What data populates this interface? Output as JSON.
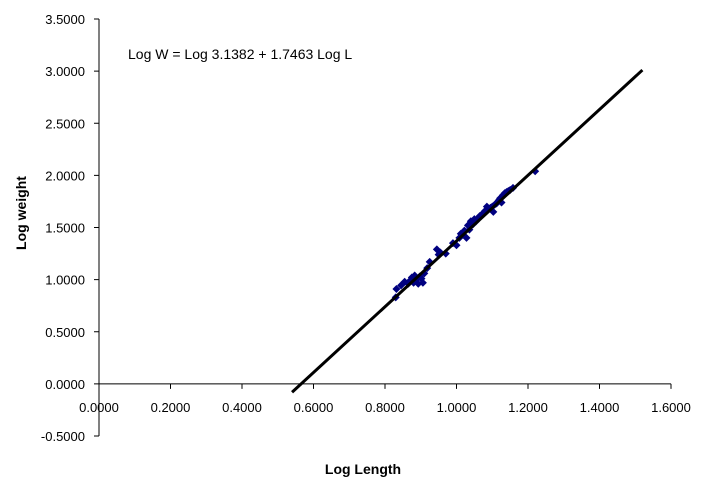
{
  "chart_data": {
    "type": "scatter",
    "title": "",
    "xlabel": "Log Length",
    "ylabel": "Log weight",
    "xlim": [
      0,
      1.6
    ],
    "ylim": [
      -0.5,
      3.5
    ],
    "x_ticks": [
      "0.0000",
      "0.2000",
      "0.4000",
      "0.6000",
      "0.8000",
      "1.0000",
      "1.2000",
      "1.4000",
      "1.6000"
    ],
    "y_ticks": [
      "-0.5000",
      "0.0000",
      "0.5000",
      "1.0000",
      "1.5000",
      "2.0000",
      "2.5000",
      "3.0000",
      "3.5000"
    ],
    "grid": false,
    "annotation": "Log W = Log 3.1382 + 1.7463 Log L",
    "marker_color": "#000080",
    "line_color": "#000000",
    "series": [
      {
        "type": "scatter",
        "points": [
          [
            0.83,
            0.83
          ],
          [
            0.832,
            0.91
          ],
          [
            0.845,
            0.945
          ],
          [
            0.855,
            0.98
          ],
          [
            0.865,
            0.96
          ],
          [
            0.87,
            0.99
          ],
          [
            0.875,
            1.02
          ],
          [
            0.88,
            0.97
          ],
          [
            0.883,
            1.04
          ],
          [
            0.888,
            1.0
          ],
          [
            0.893,
            0.96
          ],
          [
            0.897,
            1.03
          ],
          [
            0.902,
            1.01
          ],
          [
            0.906,
            0.97
          ],
          [
            0.91,
            1.06
          ],
          [
            0.918,
            1.11
          ],
          [
            0.925,
            1.17
          ],
          [
            0.945,
            1.29
          ],
          [
            0.95,
            1.24
          ],
          [
            0.955,
            1.26
          ],
          [
            0.97,
            1.25
          ],
          [
            0.99,
            1.35
          ],
          [
            1.0,
            1.33
          ],
          [
            1.008,
            1.4
          ],
          [
            1.012,
            1.44
          ],
          [
            1.018,
            1.43
          ],
          [
            1.022,
            1.47
          ],
          [
            1.028,
            1.4
          ],
          [
            1.032,
            1.52
          ],
          [
            1.036,
            1.48
          ],
          [
            1.04,
            1.56
          ],
          [
            1.046,
            1.53
          ],
          [
            1.05,
            1.58
          ],
          [
            1.055,
            1.56
          ],
          [
            1.06,
            1.59
          ],
          [
            1.065,
            1.61
          ],
          [
            1.07,
            1.62
          ],
          [
            1.075,
            1.64
          ],
          [
            1.08,
            1.66
          ],
          [
            1.085,
            1.7
          ],
          [
            1.09,
            1.68
          ],
          [
            1.095,
            1.69
          ],
          [
            1.1,
            1.7
          ],
          [
            1.103,
            1.65
          ],
          [
            1.107,
            1.72
          ],
          [
            1.112,
            1.73
          ],
          [
            1.118,
            1.76
          ],
          [
            1.122,
            1.78
          ],
          [
            1.126,
            1.74
          ],
          [
            1.13,
            1.81
          ],
          [
            1.135,
            1.83
          ],
          [
            1.14,
            1.84
          ],
          [
            1.145,
            1.85
          ],
          [
            1.15,
            1.86
          ],
          [
            1.158,
            1.88
          ],
          [
            1.22,
            2.04
          ]
        ]
      },
      {
        "type": "line",
        "points": [
          [
            0.54,
            -0.08
          ],
          [
            1.52,
            3.01
          ]
        ]
      }
    ]
  }
}
